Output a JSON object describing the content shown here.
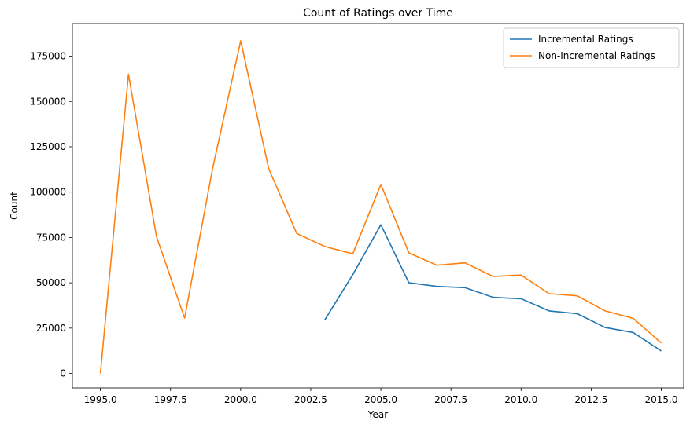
{
  "chart_data": {
    "type": "line",
    "title": "Count of Ratings over Time",
    "xlabel": "Year",
    "ylabel": "Count",
    "xlim": [
      1994.0,
      2015.8
    ],
    "ylim": [
      -8000,
      193000
    ],
    "xticks": [
      1995.0,
      1997.5,
      2000.0,
      2002.5,
      2005.0,
      2007.5,
      2010.0,
      2012.5,
      2015.0
    ],
    "xtick_labels": [
      "1995.0",
      "1997.5",
      "2000.0",
      "2002.5",
      "2005.0",
      "2007.5",
      "2010.0",
      "2012.5",
      "2015.0"
    ],
    "yticks": [
      0,
      25000,
      50000,
      75000,
      100000,
      125000,
      150000,
      175000
    ],
    "ytick_labels": [
      "0",
      "25000",
      "50000",
      "75000",
      "100000",
      "125000",
      "150000",
      "175000"
    ],
    "grid": false,
    "legend_position": "top-right",
    "series": [
      {
        "name": "Incremental Ratings",
        "color": "#1f77b4",
        "x": [
          2003,
          2004,
          2005,
          2006,
          2007,
          2008,
          2009,
          2010,
          2011,
          2012,
          2013,
          2014,
          2015
        ],
        "values": [
          29500,
          54500,
          82000,
          50000,
          48000,
          47300,
          42000,
          41200,
          34500,
          33000,
          25300,
          22600,
          12400
        ]
      },
      {
        "name": "Non-Incremental Ratings",
        "color": "#ff7f0e",
        "x": [
          1995,
          1996,
          1997,
          1998,
          1999,
          2000,
          2001,
          2002,
          2003,
          2004,
          2005,
          2006,
          2007,
          2008,
          2009,
          2010,
          2011,
          2012,
          2013,
          2014,
          2015
        ],
        "values": [
          0,
          165000,
          75500,
          30500,
          113000,
          183500,
          113000,
          77200,
          70000,
          66000,
          104300,
          66500,
          59700,
          61000,
          53500,
          54300,
          44000,
          42800,
          34500,
          30400,
          16800
        ]
      }
    ]
  }
}
